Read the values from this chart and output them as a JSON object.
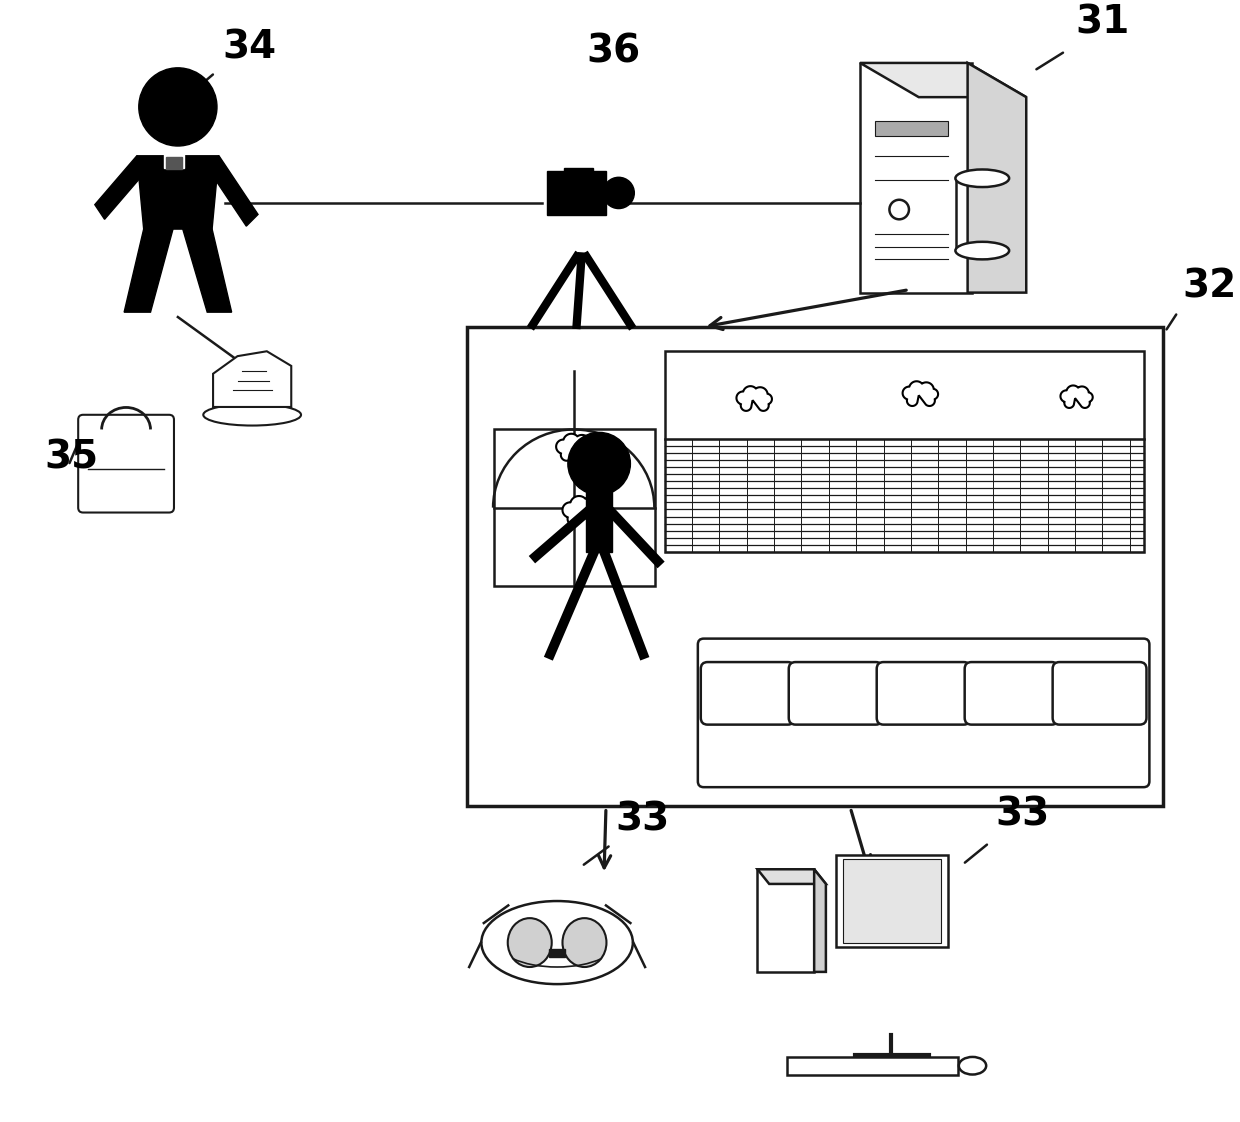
{
  "bg": "#ffffff",
  "lc": "#1a1a1a",
  "black": "#000000",
  "labels": {
    "31": "31",
    "32": "32",
    "33_l": "33",
    "33_r": "33",
    "34": "34",
    "35": "35",
    "36": "36"
  },
  "label_fontsize": 28,
  "lw": 1.8
}
